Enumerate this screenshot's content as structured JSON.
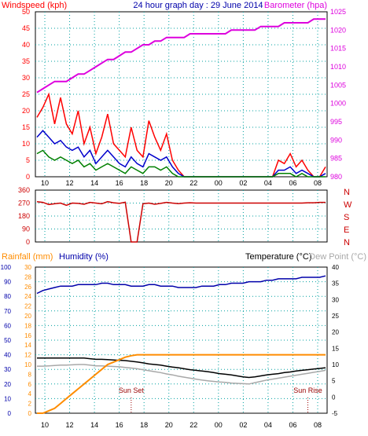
{
  "colors": {
    "wind_speed": "#ff0000",
    "wind_gust_avg": "#0000cc",
    "wind_avg": "#008000",
    "barometer": "#dd00dd",
    "direction": "#cc0000",
    "humidity": "#0000aa",
    "temperature": "#000000",
    "dew_point": "#a8a8a8",
    "rainfall": "#ff8c00",
    "grid": "#00a0a0",
    "title": "#0000aa"
  },
  "chart_data": [
    {
      "type": "line",
      "title": "24 hour graph day : 29 June 2014",
      "left_axis_label": "Windspeed (kph)",
      "right_axis_label": "Barometer (hpa)",
      "ylim": [
        0,
        50
      ],
      "y2lim": [
        980,
        1025
      ],
      "yticks": [
        "0",
        "5",
        "10",
        "15",
        "20",
        "25",
        "30",
        "35",
        "40",
        "45",
        "50"
      ],
      "y2ticks": [
        "980",
        "985",
        "990",
        "995",
        "1000",
        "1005",
        "1010",
        "1015",
        "1020",
        "1025"
      ],
      "xticks": [
        "10",
        "12",
        "14",
        "16",
        "18",
        "20",
        "22",
        "00",
        "02",
        "04",
        "06",
        "08"
      ],
      "series": [
        {
          "key": "wind_speed",
          "values": [
            18,
            21,
            25,
            16,
            24,
            16,
            13,
            20,
            10,
            15,
            7,
            12,
            19,
            10,
            8,
            6,
            15,
            8,
            6,
            17,
            12,
            8,
            13,
            5,
            2,
            0,
            0,
            0,
            0,
            0,
            0,
            0,
            0,
            0,
            0,
            0,
            0,
            0,
            0,
            0,
            0,
            5,
            4,
            7,
            3,
            5,
            2,
            0,
            0,
            3
          ]
        },
        {
          "key": "wind_gust_avg",
          "values": [
            12,
            14,
            12,
            10,
            11,
            9,
            8,
            9,
            6,
            8,
            4,
            6,
            8,
            6,
            4,
            3,
            6,
            4,
            3,
            7,
            6,
            5,
            6,
            3,
            1,
            0,
            0,
            0,
            0,
            0,
            0,
            0,
            0,
            0,
            0,
            0,
            0,
            0,
            0,
            0,
            0,
            2,
            2,
            3,
            1,
            2,
            1,
            0,
            0,
            1
          ]
        },
        {
          "key": "wind_avg",
          "values": [
            7,
            8,
            6,
            5,
            6,
            5,
            4,
            5,
            3,
            4,
            2,
            3,
            4,
            3,
            2,
            1,
            3,
            2,
            1,
            3,
            3,
            2,
            3,
            1,
            0,
            0,
            0,
            0,
            0,
            0,
            0,
            0,
            0,
            0,
            0,
            0,
            0,
            0,
            0,
            0,
            0,
            1,
            1,
            1,
            0,
            1,
            0,
            0,
            0,
            0
          ]
        },
        {
          "key": "barometer",
          "values": [
            1003,
            1004,
            1005,
            1006,
            1006,
            1006,
            1007,
            1008,
            1008,
            1009,
            1010,
            1011,
            1012,
            1012,
            1013,
            1014,
            1014,
            1015,
            1016,
            1016,
            1017,
            1017,
            1018,
            1018,
            1018,
            1018,
            1019,
            1019,
            1019,
            1019,
            1019,
            1019,
            1019,
            1020,
            1020,
            1020,
            1020,
            1020,
            1021,
            1021,
            1021,
            1021,
            1022,
            1022,
            1022,
            1022,
            1022,
            1023,
            1023,
            1023
          ]
        }
      ]
    },
    {
      "type": "line",
      "ylim": [
        0,
        360
      ],
      "yticks": [
        "0",
        "90",
        "180",
        "270",
        "360"
      ],
      "direction_letters": [
        "N",
        "W",
        "S",
        "E",
        "N"
      ],
      "series": [
        {
          "key": "direction",
          "values": [
            280,
            275,
            260,
            265,
            270,
            255,
            270,
            268,
            262,
            275,
            270,
            265,
            280,
            272,
            268,
            276,
            0,
            0,
            265,
            270,
            262,
            268,
            275,
            270,
            266,
            270,
            272,
            270,
            270,
            270,
            270,
            270,
            270,
            270,
            270,
            270,
            270,
            270,
            270,
            270,
            270,
            270,
            270,
            270,
            270,
            270,
            272,
            272,
            275,
            275
          ]
        }
      ]
    },
    {
      "type": "line",
      "left_axis_label_1": "Rainfall (mm)",
      "left_axis_label_2": "Humidity (%)",
      "right_axis_label_1": "Temperature (°C)",
      "right_axis_label_2": "Dew Point (°C)",
      "humidity_ylim": [
        0,
        100
      ],
      "humidity_yticks": [
        "0",
        "10",
        "20",
        "30",
        "40",
        "50",
        "60",
        "70",
        "80",
        "90",
        "100"
      ],
      "rain_ylim": [
        0,
        30
      ],
      "rain_yticks": [
        "0",
        "2",
        "4",
        "6",
        "8",
        "10",
        "12",
        "14",
        "16",
        "18",
        "20",
        "22",
        "24",
        "26",
        "28",
        "30"
      ],
      "temp_ylim": [
        -5,
        40
      ],
      "temp_yticks": [
        "-5",
        "0",
        "5",
        "10",
        "15",
        "20",
        "25",
        "30",
        "35",
        "40"
      ],
      "annotations": [
        {
          "text": "Sun Set",
          "x_index": 16
        },
        {
          "text": "Sun Rise",
          "x_index": 46
        }
      ],
      "series": [
        {
          "key": "humidity",
          "values": [
            82,
            84,
            85,
            86,
            87,
            87,
            87,
            88,
            88,
            88,
            88,
            89,
            89,
            88,
            88,
            88,
            87,
            87,
            87,
            88,
            88,
            87,
            87,
            87,
            86,
            86,
            86,
            86,
            87,
            87,
            87,
            88,
            88,
            89,
            89,
            89,
            90,
            90,
            90,
            91,
            91,
            92,
            92,
            92,
            92,
            93,
            93,
            93,
            93,
            94
          ]
        },
        {
          "key": "temperature",
          "values": [
            12,
            12,
            12,
            12,
            12,
            12,
            12,
            12,
            12,
            11.8,
            11.6,
            11.6,
            11.5,
            11.4,
            11.3,
            11.2,
            11,
            10.8,
            10.5,
            10.2,
            10,
            9.8,
            9.5,
            9.2,
            9,
            8.7,
            8.4,
            8.2,
            8,
            7.8,
            7.5,
            7.2,
            7,
            6.8,
            6.5,
            6.2,
            6,
            6.2,
            6.5,
            6.8,
            7,
            7.2,
            7.5,
            7.7,
            8,
            8.2,
            8.4,
            8.6,
            8.8,
            9
          ]
        },
        {
          "key": "dew_point",
          "values": [
            9.5,
            9.5,
            9.6,
            9.7,
            9.8,
            9.8,
            9.9,
            10,
            10,
            9.8,
            9.6,
            9.6,
            9.5,
            9.4,
            9.3,
            9.1,
            8.9,
            8.7,
            8.4,
            8.1,
            7.8,
            7.5,
            7.1,
            6.8,
            6.4,
            6.1,
            5.8,
            5.5,
            5.2,
            5,
            4.8,
            4.6,
            4.5,
            4.3,
            4.2,
            4.1,
            4,
            4.4,
            4.8,
            5.2,
            5.5,
            5.8,
            6.1,
            6.4,
            6.7,
            7,
            7.3,
            7.6,
            7.9,
            8.2
          ]
        },
        {
          "key": "rainfall",
          "values": [
            0,
            0,
            0.5,
            1,
            2,
            3,
            4,
            5,
            6,
            7,
            8,
            9,
            10,
            10.5,
            11,
            11.5,
            11.8,
            12,
            12,
            12,
            12,
            12,
            12,
            12,
            12,
            12,
            12,
            12,
            12,
            12,
            12,
            12,
            12,
            12,
            12,
            12,
            12,
            12,
            12,
            12,
            12,
            12,
            12,
            12,
            12,
            12,
            12,
            12,
            12,
            12
          ]
        }
      ]
    }
  ]
}
